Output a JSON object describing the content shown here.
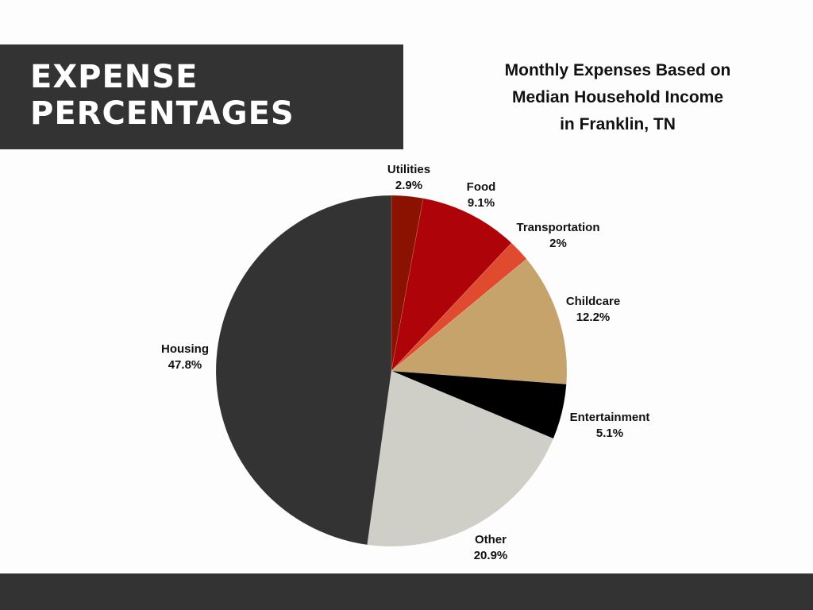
{
  "banner": {
    "line1": "EXPENSE",
    "line2": "PERCENTAGES"
  },
  "chart_data": {
    "type": "pie",
    "title": "Monthly Expenses Based on Median Household Income in Franklin, TN",
    "title_lines": [
      "Monthly Expenses Based on",
      "Median Household Income",
      "in Franklin, TN"
    ],
    "start": "top, clockwise",
    "slices": [
      {
        "label": "Utilities",
        "value": 2.9,
        "display": "2.9%",
        "color": "#8B1200"
      },
      {
        "label": "Food",
        "value": 9.1,
        "display": "9.1%",
        "color": "#AE0309"
      },
      {
        "label": "Transportation",
        "value": 2,
        "display": "2%",
        "color": "#E04A2E"
      },
      {
        "label": "Childcare",
        "value": 12.2,
        "display": "12.2%",
        "color": "#C6A36B"
      },
      {
        "label": "Entertainment",
        "value": 5.1,
        "display": "5.1%",
        "color": "#000000"
      },
      {
        "label": "Other",
        "value": 20.9,
        "display": "20.9%",
        "color": "#CFCEC7"
      },
      {
        "label": "Housing",
        "value": 47.8,
        "display": "47.8%",
        "color": "#333333"
      }
    ]
  }
}
